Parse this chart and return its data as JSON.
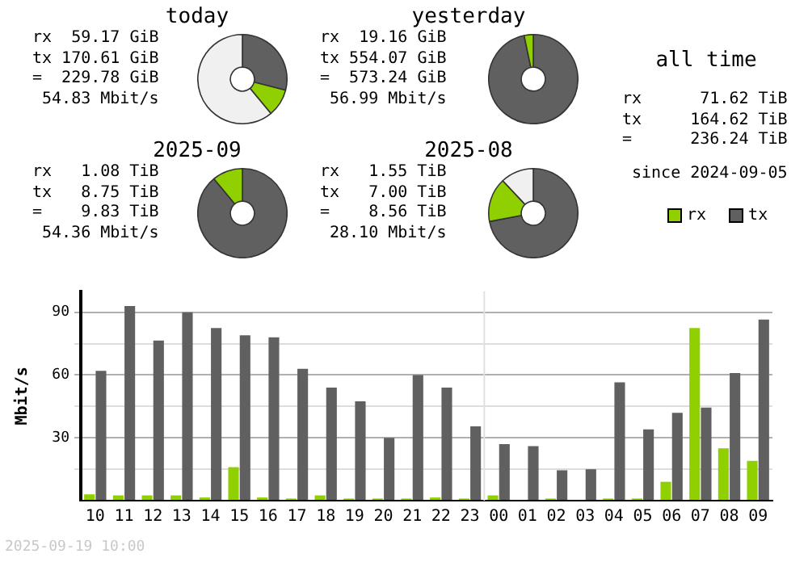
{
  "chart_data": [
    {
      "type": "donut",
      "title": "today",
      "categories": [
        null,
        null,
        null
      ],
      "values": [
        29,
        10,
        61
      ],
      "colors": [
        "#606060",
        "#90d000",
        "#f0f0f0"
      ],
      "annotations": [
        "rx",
        "59.17 GiB",
        "tx",
        "170.61 GiB",
        "=",
        "229.78 GiB",
        "54.83 Mbit/s"
      ]
    },
    {
      "type": "donut",
      "title": "yesterday",
      "categories": [
        null,
        null
      ],
      "values": [
        96.7,
        3.3
      ],
      "colors": [
        "#606060",
        "#90d000"
      ],
      "annotations": [
        "rx",
        "19.16 GiB",
        "tx",
        "554.07 GiB",
        "=",
        "573.24 GiB",
        "56.99 Mbit/s"
      ]
    },
    {
      "type": "other",
      "title": "all time",
      "annotations": [
        "rx",
        "71.62 TiB",
        "tx",
        "164.62 TiB",
        "=",
        "236.24 TiB",
        "since 2024-09-05"
      ]
    },
    {
      "type": "donut",
      "title": "2025-09",
      "categories": [
        null,
        null
      ],
      "values": [
        89,
        11
      ],
      "colors": [
        "#606060",
        "#90d000"
      ],
      "annotations": [
        "rx",
        "1.08 TiB",
        "tx",
        "8.75 TiB",
        "=",
        "9.83 TiB",
        "54.36 Mbit/s"
      ]
    },
    {
      "type": "donut",
      "title": "2025-08",
      "categories": [
        null,
        null,
        null
      ],
      "values": [
        72,
        16,
        12
      ],
      "colors": [
        "#606060",
        "#90d000",
        "#f0f0f0"
      ],
      "annotations": [
        "rx",
        "1.55 TiB",
        "tx",
        "7.00 TiB",
        "=",
        "8.56 TiB",
        "28.10 Mbit/s"
      ]
    },
    {
      "type": "bar",
      "categories": [
        "10",
        "11",
        "12",
        "13",
        "14",
        "15",
        "16",
        "17",
        "18",
        "19",
        "20",
        "21",
        "22",
        "23",
        "00",
        "01",
        "02",
        "03",
        "04",
        "05",
        "06",
        "07",
        "08",
        "09"
      ],
      "series": [
        {
          "name": "rx",
          "color": "#90d000",
          "values": [
            3,
            2.5,
            2.5,
            2.5,
            1.5,
            16,
            1.5,
            1,
            2.5,
            1,
            1,
            1,
            1.5,
            1,
            2.5,
            0,
            1,
            0,
            1,
            1,
            9,
            82.5,
            25,
            19
          ]
        },
        {
          "name": "tx",
          "color": "#606060",
          "values": [
            62,
            93,
            76.5,
            90,
            82.5,
            79,
            78,
            63,
            54,
            47.5,
            30,
            60,
            54,
            35.5,
            27,
            26,
            14.5,
            15,
            56.5,
            34,
            42,
            44.5,
            61,
            86.5
          ]
        }
      ],
      "ylabel": "Mbit/s",
      "ylim": [
        0,
        100
      ],
      "yticks": [
        {
          "value": 0,
          "label": null
        },
        {
          "value": 15,
          "label": null
        },
        30,
        {
          "value": 45,
          "label": null
        },
        60,
        {
          "value": 75,
          "label": null
        },
        90
      ],
      "grid": "y",
      "legend": "top right",
      "ref_lines": [
        {
          "axis": "x",
          "value": "00",
          "color": "#e0e0e0"
        }
      ],
      "annotations": [
        "2025-09-19 10:00"
      ]
    }
  ]
}
